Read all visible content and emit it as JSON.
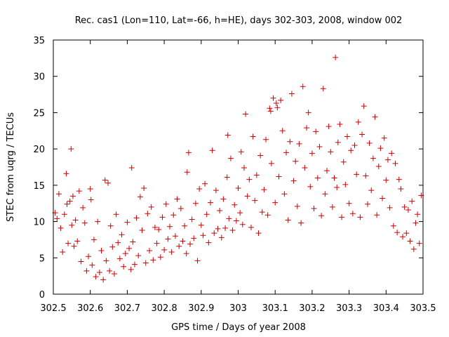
{
  "chart_data": {
    "type": "scatter",
    "title": "Rec. cas1 (Lon=110, Lat=-66, h=HE), days 302-303, 2008, window 002",
    "xlabel": "GPS time / Days of year 2008",
    "ylabel": "STEC from uqrg / TECUs",
    "xlim": [
      302.5,
      303.5
    ],
    "ylim": [
      0,
      35
    ],
    "x_ticks": [
      "302.5",
      "302.6",
      "302.7",
      "302.8",
      "302.9",
      "303",
      "303.1",
      "303.2",
      "303.3",
      "303.4",
      "303.5"
    ],
    "y_ticks": [
      "0",
      "5",
      "10",
      "15",
      "20",
      "25",
      "30",
      "35"
    ],
    "grid": false,
    "marker": "plus",
    "series": [
      {
        "color": "#cc0000",
        "points": [
          [
            302.505,
            11.2
          ],
          [
            302.51,
            10.4
          ],
          [
            302.515,
            13.8
          ],
          [
            302.52,
            9.1
          ],
          [
            302.525,
            5.8
          ],
          [
            302.53,
            11.0
          ],
          [
            302.535,
            16.6
          ],
          [
            302.537,
            12.4
          ],
          [
            302.54,
            7.0
          ],
          [
            302.545,
            12.8
          ],
          [
            302.548,
            20.0
          ],
          [
            302.55,
            9.5
          ],
          [
            302.553,
            13.5
          ],
          [
            302.556,
            6.6
          ],
          [
            302.56,
            10.2
          ],
          [
            302.565,
            7.3
          ],
          [
            302.57,
            14.2
          ],
          [
            302.575,
            4.5
          ],
          [
            302.58,
            11.9
          ],
          [
            302.585,
            9.8
          ],
          [
            302.59,
            3.2
          ],
          [
            302.595,
            5.2
          ],
          [
            302.6,
            14.5
          ],
          [
            302.602,
            13.0
          ],
          [
            302.605,
            4.0
          ],
          [
            302.61,
            7.5
          ],
          [
            302.615,
            2.4
          ],
          [
            302.62,
            10.0
          ],
          [
            302.625,
            3.0
          ],
          [
            302.63,
            6.0
          ],
          [
            302.635,
            2.0
          ],
          [
            302.64,
            15.7
          ],
          [
            302.643,
            4.6
          ],
          [
            302.648,
            15.3
          ],
          [
            302.652,
            3.2
          ],
          [
            302.655,
            9.4
          ],
          [
            302.66,
            6.5
          ],
          [
            302.665,
            2.8
          ],
          [
            302.67,
            11.0
          ],
          [
            302.675,
            7.1
          ],
          [
            302.68,
            4.9
          ],
          [
            302.685,
            8.2
          ],
          [
            302.69,
            3.8
          ],
          [
            302.695,
            5.6
          ],
          [
            302.7,
            9.9
          ],
          [
            302.705,
            6.3
          ],
          [
            302.71,
            3.4
          ],
          [
            302.712,
            17.4
          ],
          [
            302.715,
            7.2
          ],
          [
            302.72,
            4.1
          ],
          [
            302.725,
            10.5
          ],
          [
            302.73,
            5.3
          ],
          [
            302.735,
            13.4
          ],
          [
            302.74,
            8.8
          ],
          [
            302.745,
            14.6
          ],
          [
            302.75,
            4.3
          ],
          [
            302.755,
            11.1
          ],
          [
            302.76,
            6.0
          ],
          [
            302.765,
            12.0
          ],
          [
            302.77,
            4.7
          ],
          [
            302.775,
            9.2
          ],
          [
            302.78,
            7.0
          ],
          [
            302.785,
            8.9
          ],
          [
            302.79,
            5.1
          ],
          [
            302.795,
            10.6
          ],
          [
            302.8,
            6.1
          ],
          [
            302.805,
            12.4
          ],
          [
            302.81,
            7.6
          ],
          [
            302.815,
            9.3
          ],
          [
            302.82,
            5.8
          ],
          [
            302.825,
            10.9
          ],
          [
            302.83,
            8.0
          ],
          [
            302.835,
            13.1
          ],
          [
            302.84,
            6.6
          ],
          [
            302.845,
            11.8
          ],
          [
            302.85,
            7.3
          ],
          [
            302.855,
            9.4
          ],
          [
            302.86,
            5.6
          ],
          [
            302.862,
            16.8
          ],
          [
            302.866,
            19.5
          ],
          [
            302.87,
            6.9
          ],
          [
            302.875,
            10.3
          ],
          [
            302.88,
            7.7
          ],
          [
            302.885,
            12.5
          ],
          [
            302.89,
            4.6
          ],
          [
            302.895,
            14.5
          ],
          [
            302.9,
            9.5
          ],
          [
            302.905,
            8.1
          ],
          [
            302.91,
            15.2
          ],
          [
            302.915,
            11.0
          ],
          [
            302.92,
            7.1
          ],
          [
            302.925,
            12.6
          ],
          [
            302.93,
            19.8
          ],
          [
            302.935,
            8.4
          ],
          [
            302.94,
            14.3
          ],
          [
            302.945,
            9.0
          ],
          [
            302.95,
            11.5
          ],
          [
            302.955,
            7.8
          ],
          [
            302.96,
            13.1
          ],
          [
            302.965,
            9.1
          ],
          [
            302.97,
            16.1
          ],
          [
            302.972,
            21.9
          ],
          [
            302.975,
            10.4
          ],
          [
            302.98,
            18.7
          ],
          [
            302.985,
            8.8
          ],
          [
            302.99,
            12.3
          ],
          [
            302.995,
            10.1
          ],
          [
            303.0,
            14.6
          ],
          [
            303.005,
            11.2
          ],
          [
            303.008,
            19.6
          ],
          [
            303.012,
            9.6
          ],
          [
            303.016,
            17.4
          ],
          [
            303.02,
            24.8
          ],
          [
            303.025,
            13.5
          ],
          [
            303.03,
            15.8
          ],
          [
            303.035,
            9.2
          ],
          [
            303.04,
            21.7
          ],
          [
            303.045,
            12.9
          ],
          [
            303.05,
            16.4
          ],
          [
            303.055,
            8.4
          ],
          [
            303.06,
            19.1
          ],
          [
            303.065,
            11.3
          ],
          [
            303.07,
            14.4
          ],
          [
            303.075,
            21.3
          ],
          [
            303.08,
            10.9
          ],
          [
            303.085,
            25.6
          ],
          [
            303.088,
            25.2
          ],
          [
            303.09,
            18.0
          ],
          [
            303.095,
            27.0
          ],
          [
            303.1,
            12.6
          ],
          [
            303.103,
            26.3
          ],
          [
            303.106,
            25.7
          ],
          [
            303.11,
            16.2
          ],
          [
            303.115,
            26.7
          ],
          [
            303.12,
            22.5
          ],
          [
            303.125,
            13.8
          ],
          [
            303.13,
            19.5
          ],
          [
            303.135,
            10.2
          ],
          [
            303.14,
            21.0
          ],
          [
            303.145,
            27.6
          ],
          [
            303.15,
            15.6
          ],
          [
            303.155,
            18.3
          ],
          [
            303.16,
            12.1
          ],
          [
            303.165,
            20.7
          ],
          [
            303.17,
            9.8
          ],
          [
            303.175,
            28.6
          ],
          [
            303.18,
            17.4
          ],
          [
            303.185,
            22.9
          ],
          [
            303.19,
            25.0
          ],
          [
            303.195,
            14.8
          ],
          [
            303.2,
            19.4
          ],
          [
            303.205,
            11.8
          ],
          [
            303.21,
            22.4
          ],
          [
            303.215,
            16.0
          ],
          [
            303.22,
            20.3
          ],
          [
            303.225,
            10.8
          ],
          [
            303.23,
            28.3
          ],
          [
            303.235,
            13.8
          ],
          [
            303.24,
            17.0
          ],
          [
            303.245,
            23.1
          ],
          [
            303.25,
            19.6
          ],
          [
            303.255,
            12.0
          ],
          [
            303.26,
            16.0
          ],
          [
            303.263,
            32.6
          ],
          [
            303.267,
            14.7
          ],
          [
            303.27,
            20.9
          ],
          [
            303.275,
            23.4
          ],
          [
            303.28,
            10.6
          ],
          [
            303.285,
            18.2
          ],
          [
            303.29,
            15.1
          ],
          [
            303.295,
            21.7
          ],
          [
            303.3,
            12.5
          ],
          [
            303.305,
            19.8
          ],
          [
            303.31,
            11.1
          ],
          [
            303.315,
            20.5
          ],
          [
            303.32,
            16.5
          ],
          [
            303.325,
            23.7
          ],
          [
            303.33,
            10.6
          ],
          [
            303.335,
            22.0
          ],
          [
            303.34,
            25.9
          ],
          [
            303.345,
            16.3
          ],
          [
            303.35,
            12.4
          ],
          [
            303.355,
            20.8
          ],
          [
            303.36,
            14.3
          ],
          [
            303.365,
            18.7
          ],
          [
            303.37,
            24.4
          ],
          [
            303.375,
            10.9
          ],
          [
            303.38,
            17.6
          ],
          [
            303.385,
            20.1
          ],
          [
            303.39,
            13.2
          ],
          [
            303.395,
            21.5
          ],
          [
            303.4,
            15.7
          ],
          [
            303.405,
            18.5
          ],
          [
            303.41,
            11.9
          ],
          [
            303.415,
            19.4
          ],
          [
            303.42,
            9.4
          ],
          [
            303.425,
            18.0
          ],
          [
            303.43,
            8.5
          ],
          [
            303.435,
            15.8
          ],
          [
            303.44,
            14.5
          ],
          [
            303.445,
            7.9
          ],
          [
            303.45,
            12.0
          ],
          [
            303.455,
            8.4
          ],
          [
            303.46,
            11.6
          ],
          [
            303.465,
            7.3
          ],
          [
            303.47,
            12.8
          ],
          [
            303.475,
            6.2
          ],
          [
            303.48,
            9.8
          ],
          [
            303.485,
            11.0
          ],
          [
            303.49,
            7.0
          ],
          [
            303.495,
            13.6
          ]
        ]
      }
    ]
  }
}
